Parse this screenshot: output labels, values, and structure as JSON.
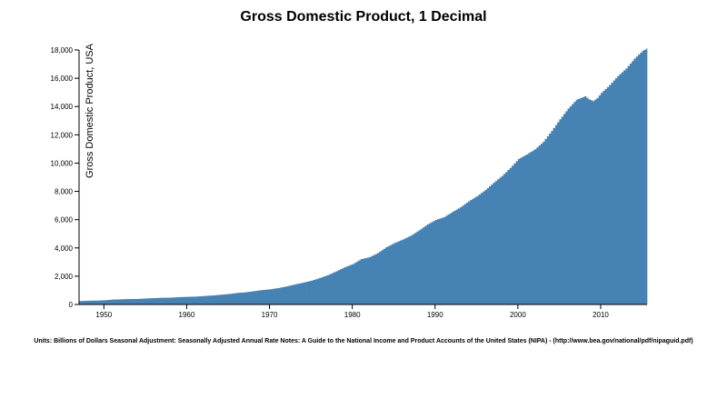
{
  "chart_data": {
    "type": "area",
    "title": "Gross Domestic Product, 1 Decimal",
    "xlabel": "",
    "ylabel": "Gross Domestic Product, USA",
    "xlim": [
      1947,
      2015.6
    ],
    "ylim": [
      0,
      18000
    ],
    "yticks": [
      0,
      2000,
      4000,
      6000,
      8000,
      10000,
      12000,
      14000,
      16000,
      18000
    ],
    "ytick_labels": [
      "0",
      "2,000",
      "4,000",
      "6,000",
      "8,000",
      "10,000",
      "12,000",
      "14,000",
      "16,000",
      "18,000"
    ],
    "xticks": [
      1950,
      1960,
      1970,
      1980,
      1990,
      2000,
      2010
    ],
    "xtick_labels": [
      "1950",
      "1960",
      "1970",
      "1980",
      "1990",
      "2000",
      "2010"
    ],
    "grid": false,
    "legend": "none",
    "color": "#4682b4",
    "series": [
      {
        "x": [
          1947,
          1948,
          1949,
          1950,
          1951,
          1952,
          1953,
          1954,
          1955,
          1956,
          1957,
          1958,
          1959,
          1960,
          1961,
          1962,
          1963,
          1964,
          1965,
          1966,
          1967,
          1968,
          1969,
          1970,
          1971,
          1972,
          1973,
          1974,
          1975,
          1976,
          1977,
          1978,
          1979,
          1980,
          1981,
          1982,
          1983,
          1984,
          1985,
          1986,
          1987,
          1988,
          1989,
          1990,
          1991,
          1992,
          1993,
          1994,
          1995,
          1996,
          1997,
          1998,
          1999,
          2000,
          2001,
          2002,
          2003,
          2004,
          2005,
          2006,
          2007,
          2008,
          2008.5,
          2009,
          2009.5,
          2010,
          2011,
          2012,
          2013,
          2014,
          2015,
          2015.5
        ],
        "values": [
          240,
          265,
          275,
          300,
          345,
          365,
          385,
          390,
          425,
          450,
          475,
          480,
          520,
          540,
          555,
          600,
          635,
          685,
          740,
          815,
          860,
          940,
          1015,
          1075,
          1165,
          1280,
          1420,
          1545,
          1685,
          1875,
          2085,
          2350,
          2630,
          2860,
          3210,
          3345,
          3640,
          4040,
          4345,
          4590,
          4870,
          5250,
          5660,
          5980,
          6175,
          6540,
          6880,
          7310,
          7665,
          8100,
          8610,
          9090,
          9660,
          10290,
          10620,
          10980,
          11510,
          12275,
          13095,
          13860,
          14480,
          14720,
          14500,
          14380,
          14600,
          14960,
          15520,
          16160,
          16690,
          17390,
          17950,
          18100
        ]
      }
    ],
    "footnote": "Units: Billions of Dollars Seasonal Adjustment: Seasonally Adjusted Annual Rate Notes: A Guide to the National Income and Product Accounts of the United States (NIPA) - (http://www.bea.gov/national/pdf/nipaguid.pdf)"
  }
}
